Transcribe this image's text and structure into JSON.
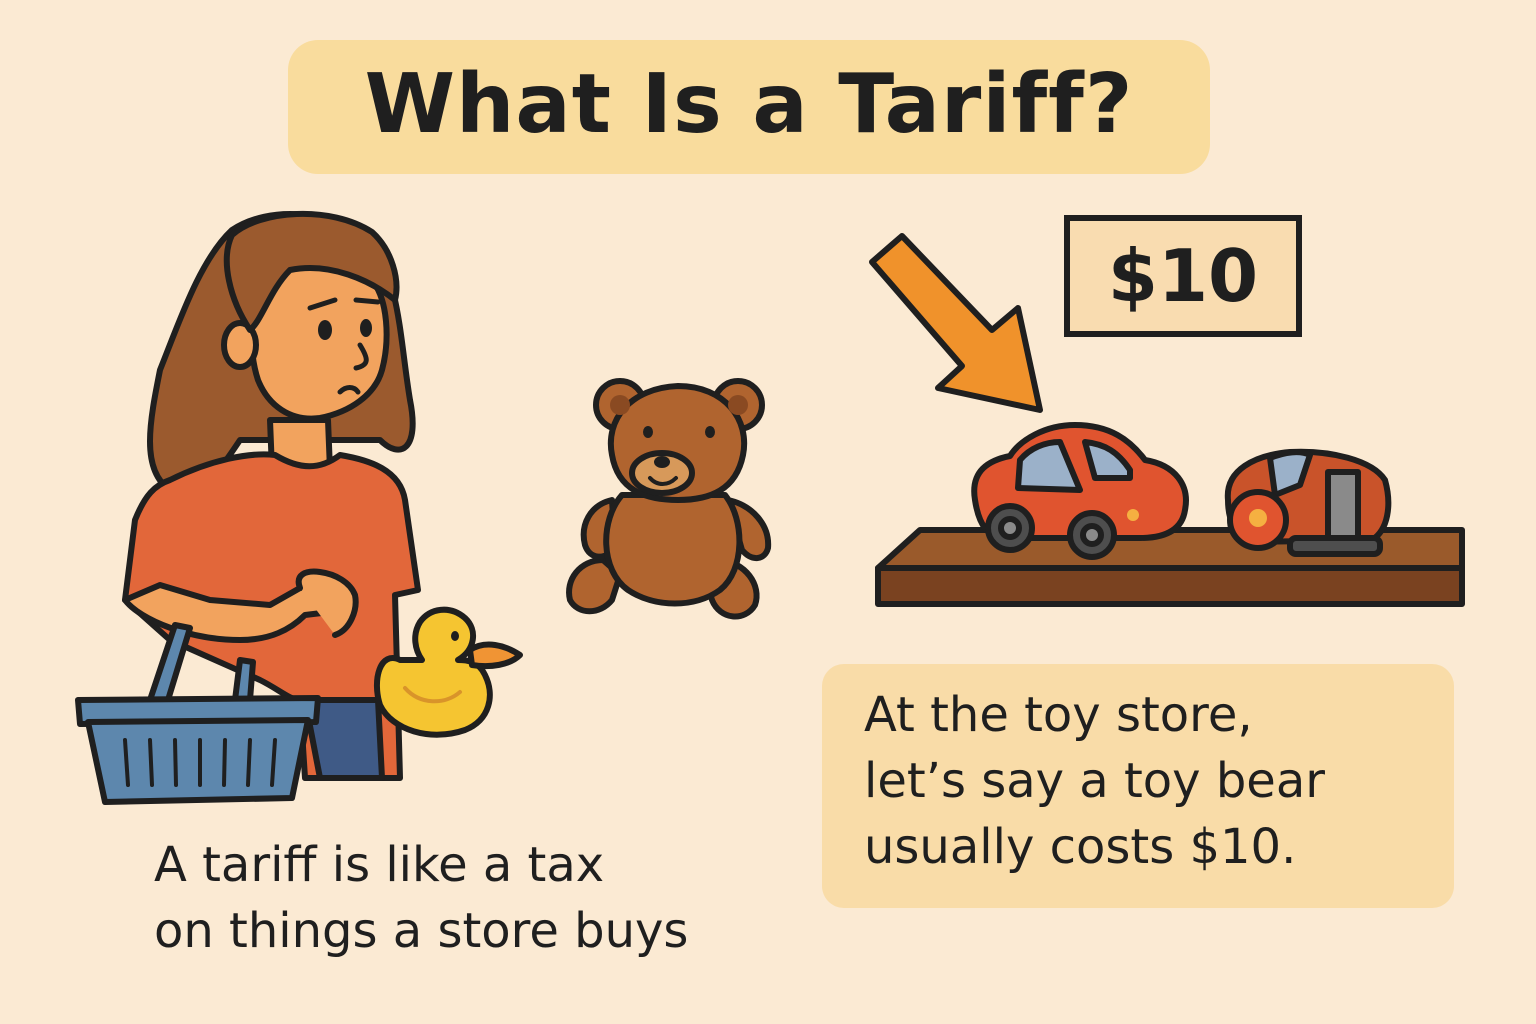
{
  "title": "What Is a Tariff?",
  "price_tag": "$10",
  "caption_left": [
    "A tariff is like a tax",
    "on things a store buys"
  ],
  "caption_right": [
    "At the toy store,",
    "let’s say a toy bear",
    "usually costs $10."
  ],
  "colors": {
    "background": "#fbead3",
    "title_banner": "#f9dc9d",
    "arrow": "#f0922b",
    "shirt": "#e2673a",
    "hair": "#9b5a2e",
    "basket": "#5d87ad",
    "duck": "#f5c531",
    "bear": "#b0642f",
    "shelf": "#7a4220",
    "car": "#e0542f"
  },
  "icons": [
    "woman-shopper-illustration",
    "basket-icon",
    "rubber-duck-icon",
    "teddy-bear-icon",
    "arrow-icon",
    "toy-car-icon",
    "toy-truck-icon",
    "shelf-icon"
  ]
}
